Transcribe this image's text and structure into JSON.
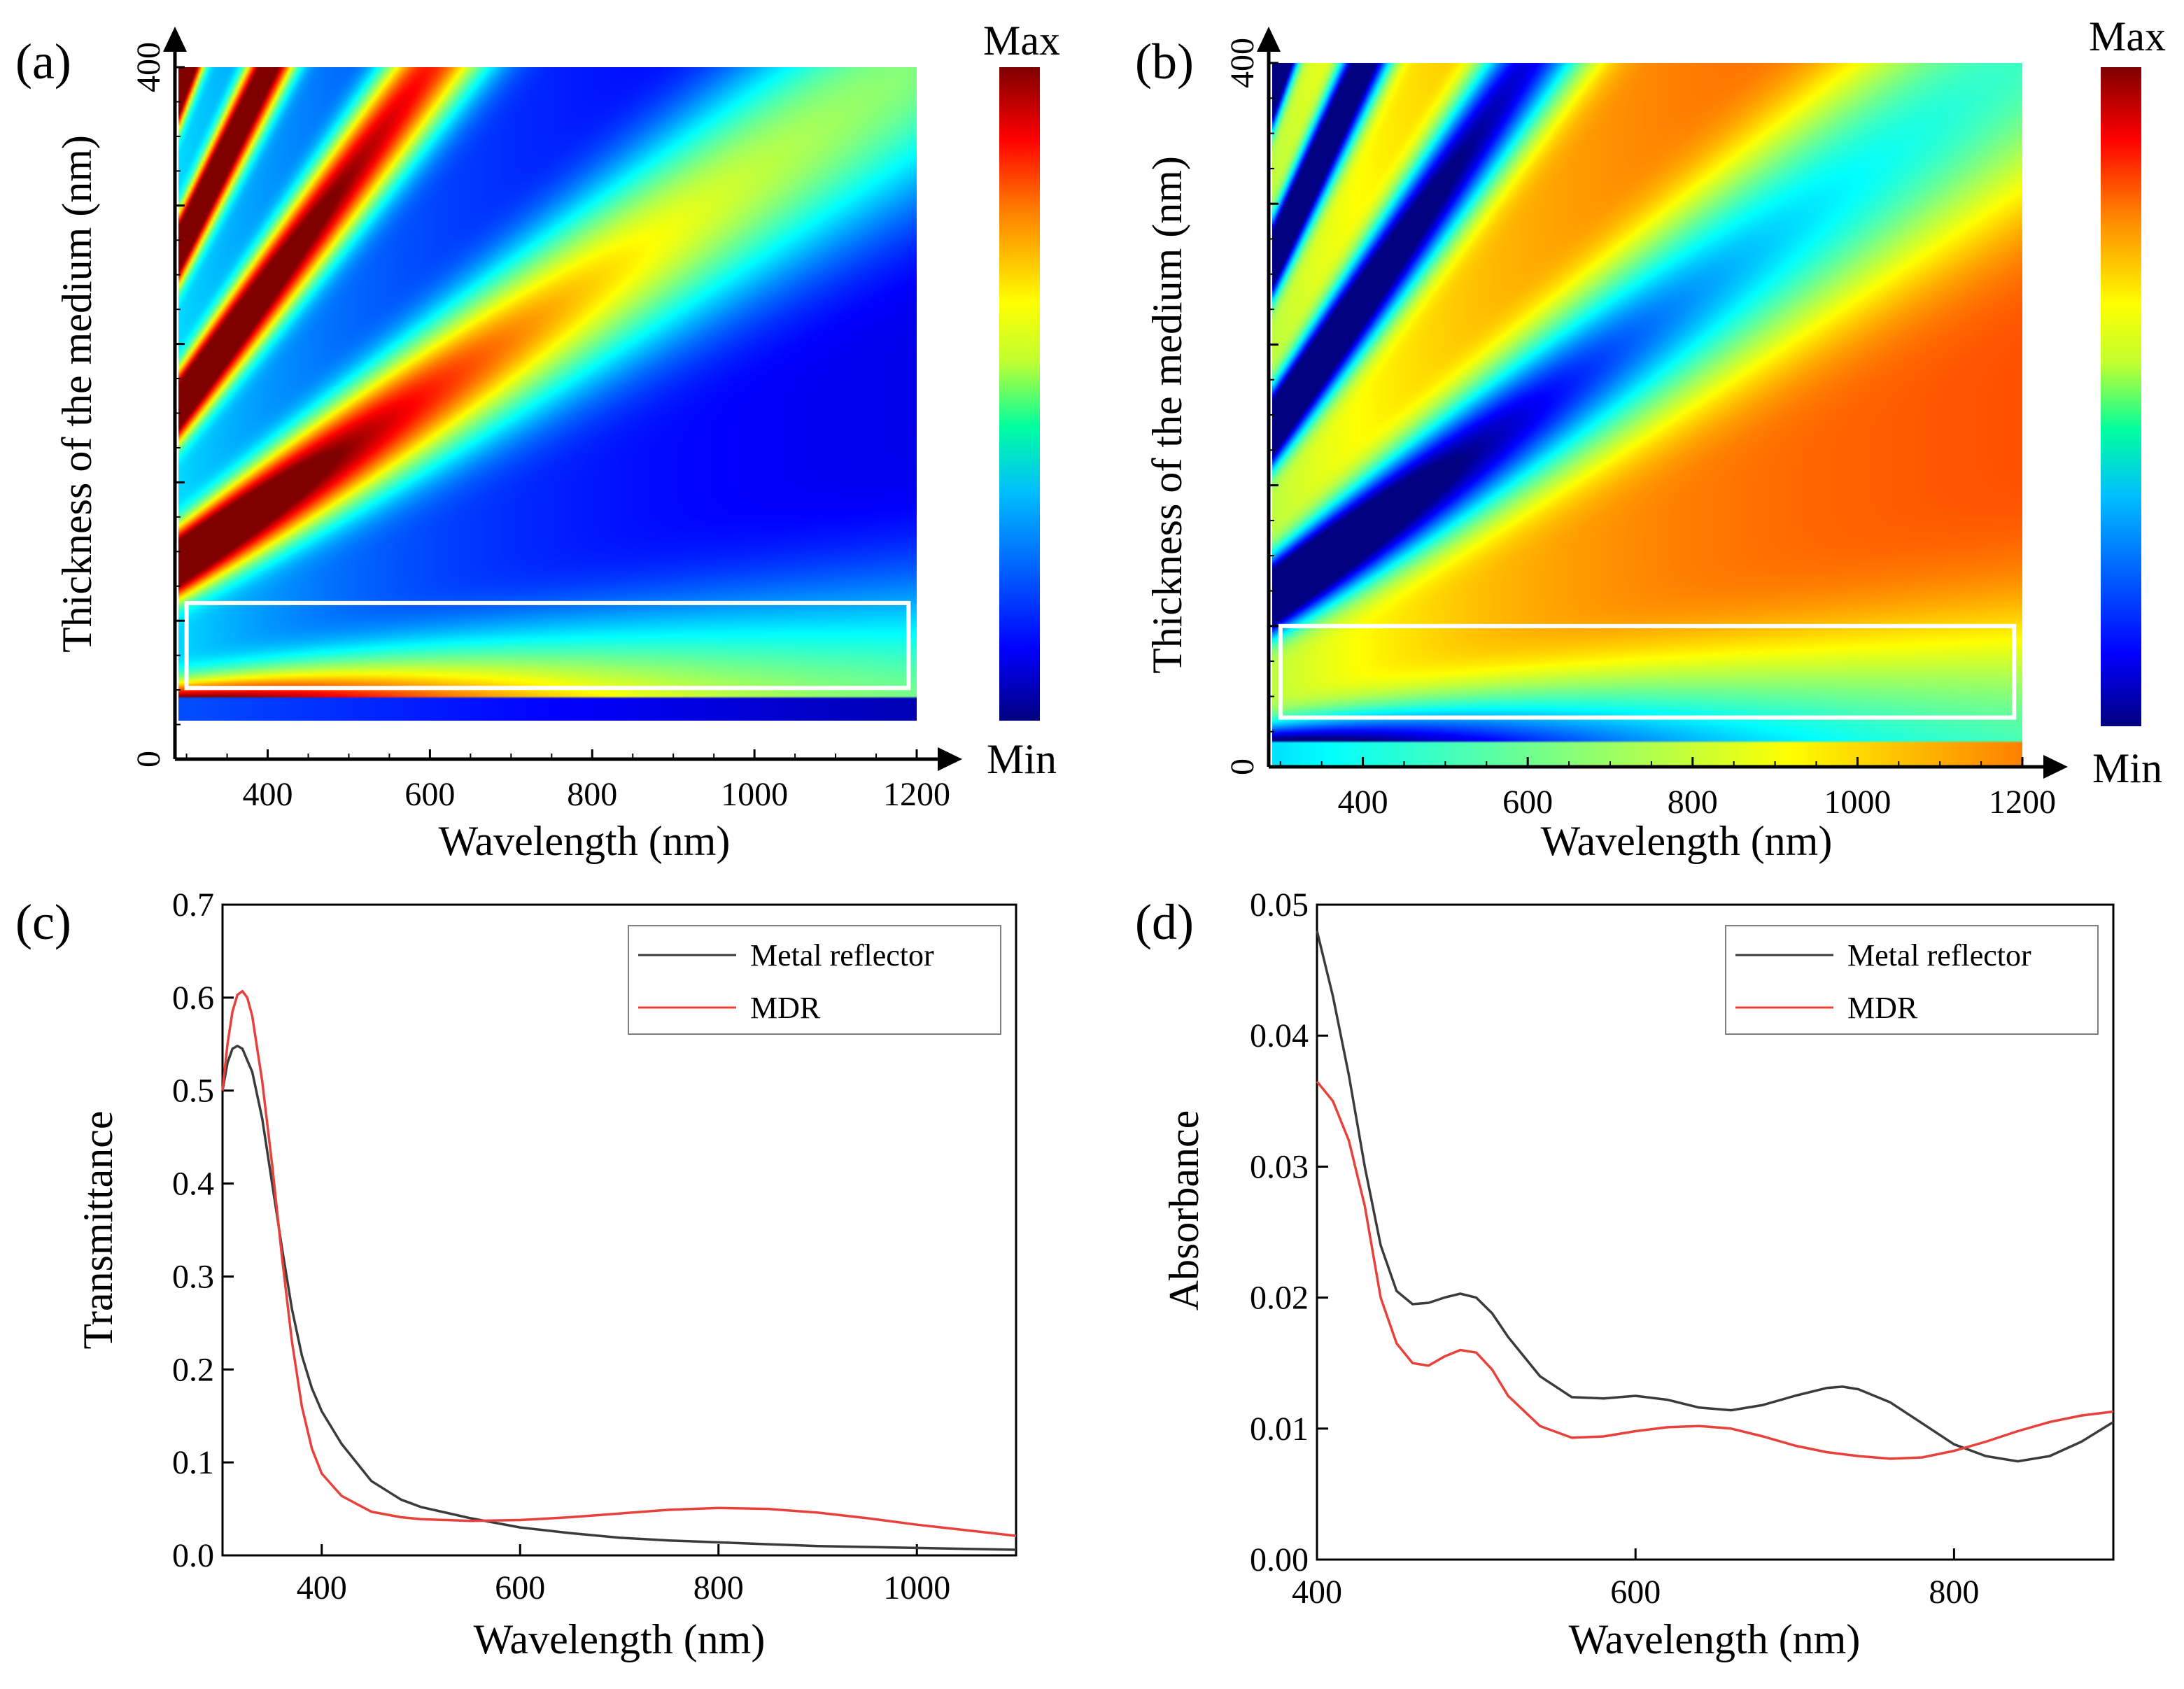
{
  "figure": {
    "colors": {
      "axis": "#000000",
      "black_series": "#3b3b3b",
      "red_series": "#e8413b",
      "highlight_box": "#ffffff"
    }
  },
  "chart_data": [
    {
      "id": "a",
      "panel_label": "(a)",
      "type": "heatmap",
      "title": "",
      "xlabel": "Wavelength (nm)",
      "ylabel": "Thickness of the medium (nm)",
      "xlim": [
        290,
        1200
      ],
      "ylim": [
        0,
        400
      ],
      "xticks": [
        400,
        600,
        800,
        1000,
        1200
      ],
      "xtick_labels": [
        "400",
        "600",
        "800",
        "1000",
        "1200"
      ],
      "yticks": [
        0,
        400
      ],
      "ytick_labels": [
        "0",
        "400"
      ],
      "colorbar": {
        "max_label": "Max",
        "min_label": "Min",
        "colormap": "jet"
      },
      "highlight_region": {
        "x": [
          300,
          1190
        ],
        "y": [
          20,
          72
        ]
      },
      "map_mode": "high-at-resonance"
    },
    {
      "id": "b",
      "panel_label": "(b)",
      "type": "heatmap",
      "title": "",
      "xlabel": "Wavelength (nm)",
      "ylabel": "Thickness of the medium (nm)",
      "xlim": [
        290,
        1200
      ],
      "ylim": [
        0,
        400
      ],
      "xticks": [
        400,
        600,
        800,
        1000,
        1200
      ],
      "xtick_labels": [
        "400",
        "600",
        "800",
        "1000",
        "1200"
      ],
      "yticks": [
        0,
        400
      ],
      "ytick_labels": [
        "0",
        "400"
      ],
      "colorbar": {
        "max_label": "Max",
        "min_label": "Min",
        "colormap": "jet"
      },
      "highlight_region": {
        "x": [
          300,
          1190
        ],
        "y": [
          28,
          80
        ]
      },
      "map_mode": "low-at-resonance"
    },
    {
      "id": "c",
      "panel_label": "(c)",
      "type": "line",
      "title": "",
      "xlabel": "Wavelength (nm)",
      "ylabel": "Transmittance",
      "xlim": [
        300,
        1100
      ],
      "ylim": [
        0.0,
        0.7
      ],
      "xticks": [
        400,
        600,
        800,
        1000
      ],
      "xtick_labels": [
        "400",
        "600",
        "800",
        "1000"
      ],
      "yticks": [
        0.0,
        0.1,
        0.2,
        0.3,
        0.4,
        0.5,
        0.6,
        0.7
      ],
      "ytick_labels": [
        "0.0",
        "0.1",
        "0.2",
        "0.3",
        "0.4",
        "0.5",
        "0.6",
        "0.7"
      ],
      "legend_position": "top-right",
      "series": [
        {
          "name": "Metal reflector",
          "color": "#3b3b3b",
          "x": [
            300,
            305,
            310,
            315,
            320,
            330,
            340,
            350,
            360,
            370,
            380,
            390,
            400,
            420,
            450,
            480,
            500,
            550,
            600,
            650,
            700,
            750,
            800,
            850,
            900,
            950,
            1000,
            1050,
            1100
          ],
          "y": [
            0.5,
            0.53,
            0.545,
            0.548,
            0.545,
            0.52,
            0.47,
            0.4,
            0.33,
            0.265,
            0.215,
            0.18,
            0.155,
            0.12,
            0.08,
            0.06,
            0.052,
            0.04,
            0.03,
            0.024,
            0.019,
            0.016,
            0.014,
            0.012,
            0.01,
            0.009,
            0.008,
            0.007,
            0.006
          ]
        },
        {
          "name": "MDR",
          "color": "#e8413b",
          "x": [
            300,
            305,
            310,
            315,
            320,
            325,
            330,
            340,
            350,
            360,
            370,
            380,
            390,
            400,
            420,
            450,
            480,
            500,
            550,
            600,
            650,
            700,
            750,
            800,
            850,
            900,
            950,
            1000,
            1050,
            1100
          ],
          "y": [
            0.5,
            0.55,
            0.585,
            0.603,
            0.607,
            0.6,
            0.58,
            0.51,
            0.42,
            0.32,
            0.23,
            0.16,
            0.115,
            0.088,
            0.064,
            0.047,
            0.041,
            0.039,
            0.037,
            0.038,
            0.041,
            0.045,
            0.049,
            0.051,
            0.05,
            0.046,
            0.04,
            0.033,
            0.027,
            0.021
          ]
        }
      ]
    },
    {
      "id": "d",
      "panel_label": "(d)",
      "type": "line",
      "title": "",
      "xlabel": "Wavelength (nm)",
      "ylabel": "Absorbance",
      "xlim": [
        400,
        900
      ],
      "ylim": [
        0.0,
        0.05
      ],
      "xticks": [
        400,
        600,
        800
      ],
      "xtick_labels": [
        "400",
        "600",
        "800"
      ],
      "yticks": [
        0.0,
        0.01,
        0.02,
        0.03,
        0.04,
        0.05
      ],
      "ytick_labels": [
        "0.00",
        "0.01",
        "0.02",
        "0.03",
        "0.04",
        "0.05"
      ],
      "legend_position": "top-right",
      "series": [
        {
          "name": "Metal reflector",
          "color": "#3b3b3b",
          "x": [
            400,
            410,
            420,
            430,
            440,
            450,
            460,
            470,
            480,
            490,
            500,
            510,
            520,
            540,
            560,
            580,
            600,
            620,
            640,
            660,
            680,
            700,
            720,
            730,
            740,
            760,
            780,
            800,
            820,
            840,
            860,
            880,
            900
          ],
          "y": [
            0.048,
            0.043,
            0.037,
            0.03,
            0.024,
            0.0205,
            0.0195,
            0.0196,
            0.02,
            0.0203,
            0.02,
            0.0188,
            0.017,
            0.014,
            0.0124,
            0.0123,
            0.0125,
            0.0122,
            0.0116,
            0.0114,
            0.0118,
            0.0125,
            0.0131,
            0.0132,
            0.013,
            0.012,
            0.0104,
            0.0088,
            0.0079,
            0.0075,
            0.0079,
            0.009,
            0.0105
          ]
        },
        {
          "name": "MDR",
          "color": "#e8413b",
          "x": [
            400,
            410,
            420,
            430,
            440,
            450,
            460,
            470,
            480,
            490,
            500,
            510,
            520,
            540,
            560,
            580,
            600,
            620,
            640,
            660,
            680,
            700,
            720,
            740,
            760,
            780,
            800,
            820,
            840,
            860,
            880,
            900
          ],
          "y": [
            0.0365,
            0.035,
            0.032,
            0.027,
            0.02,
            0.0165,
            0.015,
            0.0148,
            0.0155,
            0.016,
            0.0158,
            0.0145,
            0.0125,
            0.0102,
            0.0093,
            0.0094,
            0.0098,
            0.0101,
            0.0102,
            0.01,
            0.0094,
            0.0087,
            0.0082,
            0.0079,
            0.0077,
            0.0078,
            0.0083,
            0.009,
            0.0098,
            0.0105,
            0.011,
            0.0113
          ]
        }
      ]
    }
  ]
}
